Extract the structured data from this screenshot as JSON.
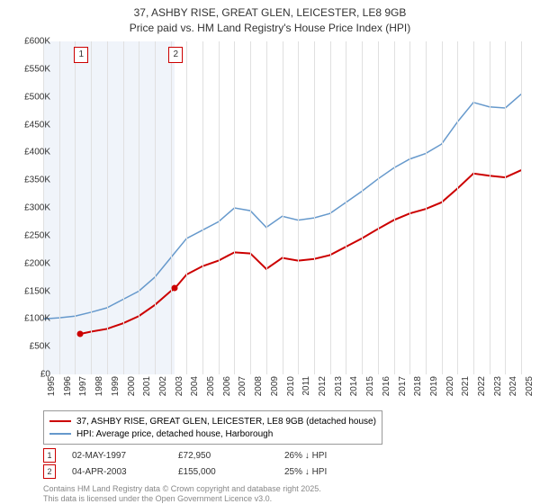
{
  "title_line1": "37, ASHBY RISE, GREAT GLEN, LEICESTER, LE8 9GB",
  "title_line2": "Price paid vs. HM Land Registry's House Price Index (HPI)",
  "chart": {
    "type": "line",
    "background_color": "#ffffff",
    "grid_color": "#e0e0e0",
    "highlight_color": "#f0f4fa",
    "x_years": [
      1995,
      1996,
      1997,
      1998,
      1999,
      2000,
      2001,
      2002,
      2003,
      2004,
      2005,
      2006,
      2007,
      2008,
      2009,
      2010,
      2011,
      2012,
      2013,
      2014,
      2015,
      2016,
      2017,
      2018,
      2019,
      2020,
      2021,
      2022,
      2023,
      2024,
      2025
    ],
    "y_ticks": [
      0,
      50000,
      100000,
      150000,
      200000,
      250000,
      300000,
      350000,
      400000,
      450000,
      500000,
      550000,
      600000
    ],
    "y_tick_labels": [
      "£0",
      "£50K",
      "£100K",
      "£150K",
      "£200K",
      "£250K",
      "£300K",
      "£350K",
      "£400K",
      "£450K",
      "£500K",
      "£550K",
      "£600K"
    ],
    "ylim": [
      0,
      600000
    ],
    "xlim": [
      1995,
      2025.5
    ],
    "highlight_bands": [
      {
        "from": 1995.0,
        "to": 1997.33
      },
      {
        "from": 1997.33,
        "to": 2003.26
      }
    ],
    "series": [
      {
        "name": "property",
        "label": "37, ASHBY RISE, GREAT GLEN, LEICESTER, LE8 9GB (detached house)",
        "color": "#cc0000",
        "line_width": 2,
        "points": [
          [
            1997.33,
            72950
          ],
          [
            1998,
            77000
          ],
          [
            1999,
            82000
          ],
          [
            2000,
            92000
          ],
          [
            2001,
            105000
          ],
          [
            2002,
            125000
          ],
          [
            2003,
            150000
          ],
          [
            2003.26,
            155000
          ],
          [
            2004,
            180000
          ],
          [
            2005,
            195000
          ],
          [
            2006,
            205000
          ],
          [
            2007,
            220000
          ],
          [
            2008,
            218000
          ],
          [
            2009,
            190000
          ],
          [
            2010,
            210000
          ],
          [
            2011,
            205000
          ],
          [
            2012,
            208000
          ],
          [
            2013,
            215000
          ],
          [
            2014,
            230000
          ],
          [
            2015,
            245000
          ],
          [
            2016,
            262000
          ],
          [
            2017,
            278000
          ],
          [
            2018,
            290000
          ],
          [
            2019,
            298000
          ],
          [
            2020,
            310000
          ],
          [
            2021,
            335000
          ],
          [
            2022,
            362000
          ],
          [
            2023,
            358000
          ],
          [
            2024,
            355000
          ],
          [
            2025,
            368000
          ]
        ]
      },
      {
        "name": "hpi",
        "label": "HPI: Average price, detached house, Harborough",
        "color": "#6699cc",
        "line_width": 1.5,
        "points": [
          [
            1995,
            100000
          ],
          [
            1996,
            102000
          ],
          [
            1997,
            105000
          ],
          [
            1998,
            112000
          ],
          [
            1999,
            120000
          ],
          [
            2000,
            135000
          ],
          [
            2001,
            150000
          ],
          [
            2002,
            175000
          ],
          [
            2003,
            210000
          ],
          [
            2004,
            245000
          ],
          [
            2005,
            260000
          ],
          [
            2006,
            275000
          ],
          [
            2007,
            300000
          ],
          [
            2008,
            295000
          ],
          [
            2009,
            265000
          ],
          [
            2010,
            285000
          ],
          [
            2011,
            278000
          ],
          [
            2012,
            282000
          ],
          [
            2013,
            290000
          ],
          [
            2014,
            310000
          ],
          [
            2015,
            330000
          ],
          [
            2016,
            352000
          ],
          [
            2017,
            372000
          ],
          [
            2018,
            388000
          ],
          [
            2019,
            398000
          ],
          [
            2020,
            415000
          ],
          [
            2021,
            455000
          ],
          [
            2022,
            490000
          ],
          [
            2023,
            482000
          ],
          [
            2024,
            480000
          ],
          [
            2025,
            505000
          ]
        ]
      }
    ],
    "markers": [
      {
        "n": "1",
        "year": 1997.33,
        "color": "#cc0000",
        "date": "02-MAY-1997",
        "price": "£72,950",
        "delta": "26% ↓ HPI",
        "price_val": 72950
      },
      {
        "n": "2",
        "year": 2003.26,
        "color": "#cc0000",
        "date": "04-APR-2003",
        "price": "£155,000",
        "delta": "25% ↓ HPI",
        "price_val": 155000
      }
    ]
  },
  "footer_line1": "Contains HM Land Registry data © Crown copyright and database right 2025.",
  "footer_line2": "This data is licensed under the Open Government Licence v3.0."
}
